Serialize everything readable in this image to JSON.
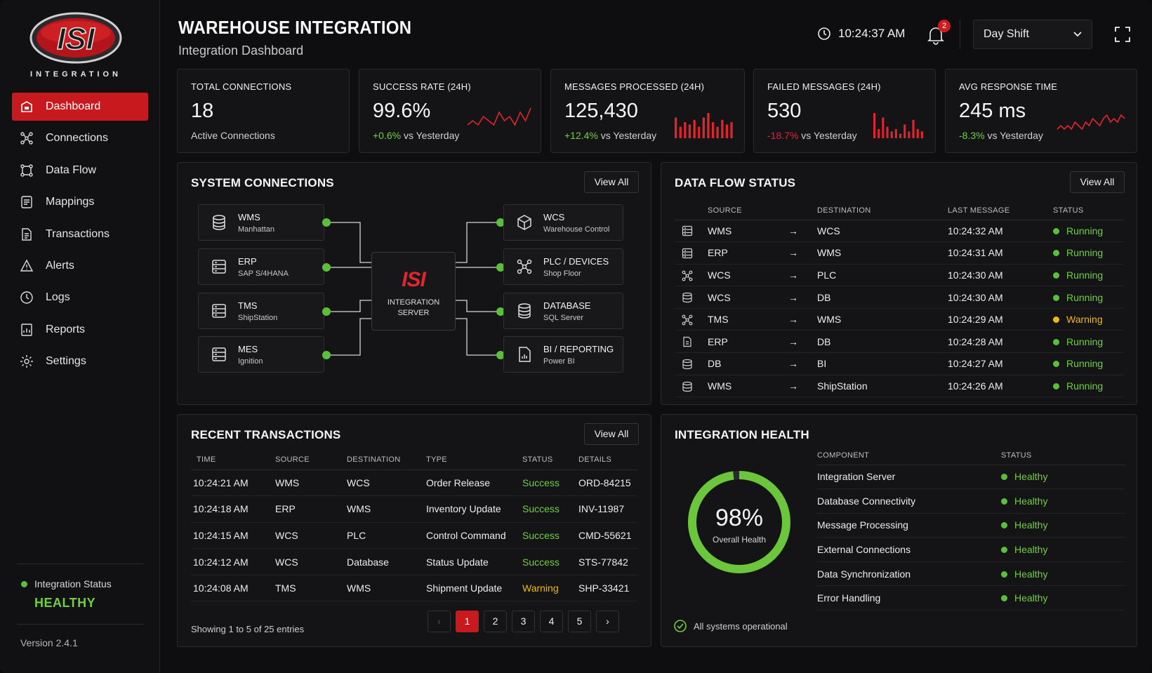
{
  "brand": {
    "logo_text": "ISI",
    "wordmark": "INTEGRATION"
  },
  "sidebar": {
    "items": [
      {
        "label": "Dashboard",
        "icon": "dashboard-icon"
      },
      {
        "label": "Connections",
        "icon": "connections-icon"
      },
      {
        "label": "Data Flow",
        "icon": "data-flow-icon"
      },
      {
        "label": "Mappings",
        "icon": "mappings-icon"
      },
      {
        "label": "Transactions",
        "icon": "transactions-icon"
      },
      {
        "label": "Alerts",
        "icon": "alert-icon"
      },
      {
        "label": "Logs",
        "icon": "logs-icon"
      },
      {
        "label": "Reports",
        "icon": "reports-icon"
      },
      {
        "label": "Settings",
        "icon": "gear-icon"
      }
    ],
    "status_label": "Integration Status",
    "status_value": "HEALTHY",
    "version": "Version 2.4.1"
  },
  "header": {
    "title": "WAREHOUSE INTEGRATION",
    "subtitle": "Integration Dashboard",
    "time": "10:24:37 AM",
    "notifications": "2",
    "shift": "Day Shift"
  },
  "kpis": [
    {
      "label": "TOTAL CONNECTIONS",
      "value": "18",
      "sub": "Active Connections"
    },
    {
      "label": "SUCCESS RATE (24H)",
      "value": "99.6%",
      "delta": "+0.6%",
      "sub": "vs Yesterday",
      "trend": [
        3,
        4,
        3,
        5,
        4,
        3,
        6,
        4,
        5,
        3,
        6,
        4,
        7
      ]
    },
    {
      "label": "MESSAGES PROCESSED (24H)",
      "value": "125,430",
      "delta": "+12.4%",
      "sub": "vs Yesterday",
      "bars": [
        9,
        5,
        7,
        6,
        8,
        5,
        9,
        11,
        7,
        5,
        8,
        6,
        7
      ]
    },
    {
      "label": "FAILED MESSAGES (24H)",
      "value": "530",
      "delta": "-18.7%",
      "sub": "vs Yesterday",
      "bars": [
        11,
        4,
        9,
        5,
        3,
        4,
        2,
        6,
        3,
        8,
        4,
        3
      ]
    },
    {
      "label": "AVG RESPONSE TIME",
      "value": "245 ms",
      "delta": "-8.3%",
      "sub": "vs Yesterday",
      "trend": [
        3,
        4,
        3,
        4,
        3,
        5,
        4,
        3,
        5,
        4,
        6,
        5,
        4,
        6,
        7,
        5,
        6,
        5,
        7,
        6
      ]
    }
  ],
  "system_connections": {
    "title": "SYSTEM CONNECTIONS",
    "view_all": "View All",
    "server": {
      "logo": "ISI",
      "line1": "INTEGRATION",
      "line2": "SERVER"
    },
    "left": [
      {
        "name": "WMS",
        "sub": "Manhattan",
        "icon": "database-icon"
      },
      {
        "name": "ERP",
        "sub": "SAP S/4HANA",
        "icon": "server-icon"
      },
      {
        "name": "TMS",
        "sub": "ShipStation",
        "icon": "server-icon"
      },
      {
        "name": "MES",
        "sub": "Ignition",
        "icon": "server-icon"
      }
    ],
    "right": [
      {
        "name": "WCS",
        "sub": "Warehouse Control",
        "icon": "cube-icon"
      },
      {
        "name": "PLC / DEVICES",
        "sub": "Shop Floor",
        "icon": "network-icon"
      },
      {
        "name": "DATABASE",
        "sub": "SQL Server",
        "icon": "database-icon"
      },
      {
        "name": "BI / REPORTING",
        "sub": "Power BI",
        "icon": "report-icon"
      }
    ]
  },
  "data_flow": {
    "title": "DATA FLOW STATUS",
    "view_all": "View All",
    "columns": [
      "SOURCE",
      "DESTINATION",
      "LAST MESSAGE",
      "STATUS"
    ],
    "arrow": "→",
    "rows": [
      {
        "icon": "server-icon",
        "source": "WMS",
        "dest": "WCS",
        "time": "10:24:32 AM",
        "status": "Running"
      },
      {
        "icon": "server-icon",
        "source": "ERP",
        "dest": "WMS",
        "time": "10:24:31 AM",
        "status": "Running"
      },
      {
        "icon": "network-icon",
        "source": "WCS",
        "dest": "PLC",
        "time": "10:24:30 AM",
        "status": "Running"
      },
      {
        "icon": "database-icon",
        "source": "WCS",
        "dest": "DB",
        "time": "10:24:30 AM",
        "status": "Running"
      },
      {
        "icon": "network-icon",
        "source": "TMS",
        "dest": "WMS",
        "time": "10:24:29 AM",
        "status": "Warning"
      },
      {
        "icon": "document-icon",
        "source": "ERP",
        "dest": "DB",
        "time": "10:24:28 AM",
        "status": "Running"
      },
      {
        "icon": "database-icon",
        "source": "DB",
        "dest": "BI",
        "time": "10:24:27 AM",
        "status": "Running"
      },
      {
        "icon": "database-icon",
        "source": "WMS",
        "dest": "ShipStation",
        "time": "10:24:26 AM",
        "status": "Running"
      }
    ]
  },
  "transactions": {
    "title": "RECENT TRANSACTIONS",
    "view_all": "View All",
    "columns": [
      "TIME",
      "SOURCE",
      "DESTINATION",
      "TYPE",
      "STATUS",
      "DETAILS"
    ],
    "rows": [
      {
        "time": "10:24:21 AM",
        "source": "WMS",
        "dest": "WCS",
        "type": "Order Release",
        "status": "Success",
        "details": "ORD-84215"
      },
      {
        "time": "10:24:18 AM",
        "source": "ERP",
        "dest": "WMS",
        "type": "Inventory Update",
        "status": "Success",
        "details": "INV-11987"
      },
      {
        "time": "10:24:15 AM",
        "source": "WCS",
        "dest": "PLC",
        "type": "Control Command",
        "status": "Success",
        "details": "CMD-55621"
      },
      {
        "time": "10:24:12 AM",
        "source": "WCS",
        "dest": "Database",
        "type": "Status Update",
        "status": "Success",
        "details": "STS-77842"
      },
      {
        "time": "10:24:08 AM",
        "source": "TMS",
        "dest": "WMS",
        "type": "Shipment Update",
        "status": "Warning",
        "details": "SHP-33421"
      }
    ],
    "showing": "Showing 1 to 5 of 25 entries",
    "pages": [
      "1",
      "2",
      "3",
      "4",
      "5"
    ],
    "prev": "‹",
    "next": "›",
    "current_page": "1"
  },
  "health": {
    "title": "INTEGRATION HEALTH",
    "percent": "98%",
    "percent_value": 0.98,
    "percent_label": "Overall Health",
    "columns": [
      "COMPONENT",
      "STATUS"
    ],
    "rows": [
      {
        "component": "Integration Server",
        "status": "Healthy"
      },
      {
        "component": "Database Connectivity",
        "status": "Healthy"
      },
      {
        "component": "Message Processing",
        "status": "Healthy"
      },
      {
        "component": "External Connections",
        "status": "Healthy"
      },
      {
        "component": "Data Synchronization",
        "status": "Healthy"
      },
      {
        "component": "Error Handling",
        "status": "Healthy"
      }
    ],
    "footer": "All systems operational"
  },
  "colors": {
    "accent": "#c8191f",
    "ok": "#6fcf3f",
    "warn": "#f0b90b",
    "bad": "#e0262d"
  }
}
